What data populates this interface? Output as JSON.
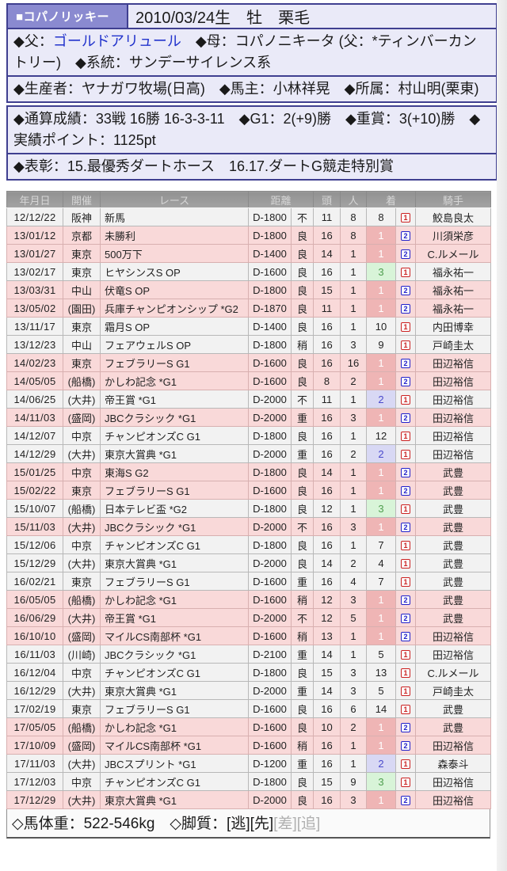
{
  "page": {
    "title_bar": {
      "name": "■コパノリッキー",
      "birth": "2010/03/24生　牡　栗毛"
    },
    "pedigree": {
      "sire_label": "◆父：",
      "sire": "ゴールドアリュール",
      "rest": "　◆母：コパノニキータ (父：*ティンバーカントリー)　◆系統：サンデーサイレンス系"
    },
    "breeder_line": "◆生産者：ヤナガワ牧場(日高)　◆馬主：小林祥晃　◆所属：村山明(栗東)",
    "record_line": "◆通算成績：33戦 16勝 16-3-3-11　◆G1：2(+9)勝　◆重賞：3(+10)勝　◆実績ポイント：1125pt",
    "award_line": "◆表彰：15.最優秀ダートホース　16.17.ダートG競走特別賞"
  },
  "table": {
    "headers": [
      "年月日",
      "開催",
      "レース",
      "距離",
      "頭",
      "人",
      "着",
      "騎手"
    ],
    "legend": {
      "style_icon_red": "boxed-digit-1-red (running style 逃)",
      "style_icon_blue": "boxed-digit-2-blue (running style 先)"
    },
    "rows": [
      {
        "date": "12/12/22",
        "ny": true,
        "venue": "阪神",
        "race": "新馬",
        "dist": "D-1800",
        "cond": "不",
        "heads": "11",
        "pop": "8",
        "fin": "8",
        "fin_type": "other",
        "style": "1",
        "style_color": "red",
        "jockey": "鮫島良太"
      },
      {
        "date": "13/01/12",
        "ny": true,
        "venue": "京都",
        "race": "未勝利",
        "dist": "D-1800",
        "cond": "良",
        "heads": "16",
        "pop": "8",
        "fin": "1",
        "fin_type": "win",
        "style": "2",
        "style_color": "blue",
        "jockey": "川須栄彦"
      },
      {
        "date": "13/01/27",
        "ny": false,
        "venue": "東京",
        "race": "500万下",
        "dist": "D-1400",
        "cond": "良",
        "heads": "14",
        "pop": "1",
        "fin": "1",
        "fin_type": "win",
        "style": "2",
        "style_color": "blue",
        "jockey": "C.ルメール"
      },
      {
        "date": "13/02/17",
        "ny": false,
        "venue": "東京",
        "race": "ヒヤシンスS OP",
        "dist": "D-1600",
        "cond": "良",
        "heads": "16",
        "pop": "1",
        "fin": "3",
        "fin_type": "third",
        "style": "1",
        "style_color": "red",
        "jockey": "福永祐一"
      },
      {
        "date": "13/03/31",
        "ny": false,
        "venue": "中山",
        "race": "伏竜S OP",
        "dist": "D-1800",
        "cond": "良",
        "heads": "15",
        "pop": "1",
        "fin": "1",
        "fin_type": "win",
        "style": "2",
        "style_color": "blue",
        "jockey": "福永祐一"
      },
      {
        "date": "13/05/02",
        "ny": false,
        "venue": "(園田)",
        "race": "兵庫チャンピオンシップ *G2",
        "dist": "D-1870",
        "cond": "良",
        "heads": "11",
        "pop": "1",
        "fin": "1",
        "fin_type": "win",
        "style": "2",
        "style_color": "blue",
        "jockey": "福永祐一"
      },
      {
        "date": "13/11/17",
        "ny": false,
        "venue": "東京",
        "race": "霜月S OP",
        "dist": "D-1400",
        "cond": "良",
        "heads": "16",
        "pop": "1",
        "fin": "10",
        "fin_type": "other",
        "style": "1",
        "style_color": "red",
        "jockey": "内田博幸"
      },
      {
        "date": "13/12/23",
        "ny": false,
        "venue": "中山",
        "race": "フェアウェルS OP",
        "dist": "D-1800",
        "cond": "稍",
        "heads": "16",
        "pop": "3",
        "fin": "9",
        "fin_type": "other",
        "style": "1",
        "style_color": "red",
        "jockey": "戸崎圭太"
      },
      {
        "date": "14/02/23",
        "ny": true,
        "venue": "東京",
        "race": "フェブラリーS G1",
        "dist": "D-1600",
        "cond": "良",
        "heads": "16",
        "pop": "16",
        "fin": "1",
        "fin_type": "win",
        "style": "2",
        "style_color": "blue",
        "jockey": "田辺裕信"
      },
      {
        "date": "14/05/05",
        "ny": false,
        "venue": "(船橋)",
        "race": "かしわ記念 *G1",
        "dist": "D-1600",
        "cond": "良",
        "heads": "8",
        "pop": "2",
        "fin": "1",
        "fin_type": "win",
        "style": "2",
        "style_color": "blue",
        "jockey": "田辺裕信"
      },
      {
        "date": "14/06/25",
        "ny": false,
        "venue": "(大井)",
        "race": "帝王賞 *G1",
        "dist": "D-2000",
        "cond": "不",
        "heads": "11",
        "pop": "1",
        "fin": "2",
        "fin_type": "second",
        "style": "1",
        "style_color": "red",
        "jockey": "田辺裕信"
      },
      {
        "date": "14/11/03",
        "ny": false,
        "venue": "(盛岡)",
        "race": "JBCクラシック *G1",
        "dist": "D-2000",
        "cond": "重",
        "heads": "16",
        "pop": "3",
        "fin": "1",
        "fin_type": "win",
        "style": "2",
        "style_color": "blue",
        "jockey": "田辺裕信"
      },
      {
        "date": "14/12/07",
        "ny": false,
        "venue": "中京",
        "race": "チャンピオンズC G1",
        "dist": "D-1800",
        "cond": "良",
        "heads": "16",
        "pop": "1",
        "fin": "12",
        "fin_type": "other",
        "style": "1",
        "style_color": "red",
        "jockey": "田辺裕信"
      },
      {
        "date": "14/12/29",
        "ny": false,
        "venue": "(大井)",
        "race": "東京大賞典 *G1",
        "dist": "D-2000",
        "cond": "重",
        "heads": "16",
        "pop": "2",
        "fin": "2",
        "fin_type": "second",
        "style": "1",
        "style_color": "red",
        "jockey": "田辺裕信"
      },
      {
        "date": "15/01/25",
        "ny": true,
        "venue": "中京",
        "race": "東海S G2",
        "dist": "D-1800",
        "cond": "良",
        "heads": "14",
        "pop": "1",
        "fin": "1",
        "fin_type": "win",
        "style": "2",
        "style_color": "blue",
        "jockey": "武豊"
      },
      {
        "date": "15/02/22",
        "ny": false,
        "venue": "東京",
        "race": "フェブラリーS G1",
        "dist": "D-1600",
        "cond": "良",
        "heads": "16",
        "pop": "1",
        "fin": "1",
        "fin_type": "win",
        "style": "2",
        "style_color": "blue",
        "jockey": "武豊"
      },
      {
        "date": "15/10/07",
        "ny": false,
        "venue": "(船橋)",
        "race": "日本テレビ盃 *G2",
        "dist": "D-1800",
        "cond": "良",
        "heads": "12",
        "pop": "1",
        "fin": "3",
        "fin_type": "third",
        "style": "1",
        "style_color": "red",
        "jockey": "武豊"
      },
      {
        "date": "15/11/03",
        "ny": false,
        "venue": "(大井)",
        "race": "JBCクラシック *G1",
        "dist": "D-2000",
        "cond": "不",
        "heads": "16",
        "pop": "3",
        "fin": "1",
        "fin_type": "win",
        "style": "2",
        "style_color": "blue",
        "jockey": "武豊"
      },
      {
        "date": "15/12/06",
        "ny": false,
        "venue": "中京",
        "race": "チャンピオンズC G1",
        "dist": "D-1800",
        "cond": "良",
        "heads": "16",
        "pop": "1",
        "fin": "7",
        "fin_type": "other",
        "style": "1",
        "style_color": "red",
        "jockey": "武豊"
      },
      {
        "date": "15/12/29",
        "ny": false,
        "venue": "(大井)",
        "race": "東京大賞典 *G1",
        "dist": "D-2000",
        "cond": "良",
        "heads": "14",
        "pop": "2",
        "fin": "4",
        "fin_type": "other",
        "style": "1",
        "style_color": "red",
        "jockey": "武豊"
      },
      {
        "date": "16/02/21",
        "ny": true,
        "venue": "東京",
        "race": "フェブラリーS G1",
        "dist": "D-1600",
        "cond": "重",
        "heads": "16",
        "pop": "4",
        "fin": "7",
        "fin_type": "other",
        "style": "1",
        "style_color": "red",
        "jockey": "武豊"
      },
      {
        "date": "16/05/05",
        "ny": false,
        "venue": "(船橋)",
        "race": "かしわ記念 *G1",
        "dist": "D-1600",
        "cond": "稍",
        "heads": "12",
        "pop": "3",
        "fin": "1",
        "fin_type": "win",
        "style": "2",
        "style_color": "blue",
        "jockey": "武豊"
      },
      {
        "date": "16/06/29",
        "ny": false,
        "venue": "(大井)",
        "race": "帝王賞 *G1",
        "dist": "D-2000",
        "cond": "不",
        "heads": "12",
        "pop": "5",
        "fin": "1",
        "fin_type": "win",
        "style": "2",
        "style_color": "blue",
        "jockey": "武豊"
      },
      {
        "date": "16/10/10",
        "ny": false,
        "venue": "(盛岡)",
        "race": "マイルCS南部杯 *G1",
        "dist": "D-1600",
        "cond": "稍",
        "heads": "13",
        "pop": "1",
        "fin": "1",
        "fin_type": "win",
        "style": "2",
        "style_color": "blue",
        "jockey": "田辺裕信"
      },
      {
        "date": "16/11/03",
        "ny": false,
        "venue": "(川崎)",
        "race": "JBCクラシック *G1",
        "dist": "D-2100",
        "cond": "重",
        "heads": "14",
        "pop": "1",
        "fin": "5",
        "fin_type": "other",
        "style": "1",
        "style_color": "red",
        "jockey": "田辺裕信"
      },
      {
        "date": "16/12/04",
        "ny": false,
        "venue": "中京",
        "race": "チャンピオンズC G1",
        "dist": "D-1800",
        "cond": "良",
        "heads": "15",
        "pop": "3",
        "fin": "13",
        "fin_type": "other",
        "style": "1",
        "style_color": "red",
        "jockey": "C.ルメール"
      },
      {
        "date": "16/12/29",
        "ny": false,
        "venue": "(大井)",
        "race": "東京大賞典 *G1",
        "dist": "D-2000",
        "cond": "重",
        "heads": "14",
        "pop": "3",
        "fin": "5",
        "fin_type": "other",
        "style": "1",
        "style_color": "red",
        "jockey": "戸崎圭太"
      },
      {
        "date": "17/02/19",
        "ny": true,
        "venue": "東京",
        "race": "フェブラリーS G1",
        "dist": "D-1600",
        "cond": "良",
        "heads": "16",
        "pop": "6",
        "fin": "14",
        "fin_type": "other",
        "style": "1",
        "style_color": "red",
        "jockey": "武豊"
      },
      {
        "date": "17/05/05",
        "ny": false,
        "venue": "(船橋)",
        "race": "かしわ記念 *G1",
        "dist": "D-1600",
        "cond": "良",
        "heads": "10",
        "pop": "2",
        "fin": "1",
        "fin_type": "win",
        "style": "2",
        "style_color": "blue",
        "jockey": "武豊"
      },
      {
        "date": "17/10/09",
        "ny": false,
        "venue": "(盛岡)",
        "race": "マイルCS南部杯 *G1",
        "dist": "D-1600",
        "cond": "稍",
        "heads": "16",
        "pop": "1",
        "fin": "1",
        "fin_type": "win",
        "style": "2",
        "style_color": "blue",
        "jockey": "田辺裕信"
      },
      {
        "date": "17/11/03",
        "ny": false,
        "venue": "(大井)",
        "race": "JBCスプリント *G1",
        "dist": "D-1200",
        "cond": "重",
        "heads": "16",
        "pop": "1",
        "fin": "2",
        "fin_type": "second",
        "style": "1",
        "style_color": "red",
        "jockey": "森泰斗"
      },
      {
        "date": "17/12/03",
        "ny": false,
        "venue": "中京",
        "race": "チャンピオンズC G1",
        "dist": "D-1800",
        "cond": "良",
        "heads": "15",
        "pop": "9",
        "fin": "3",
        "fin_type": "third",
        "style": "1",
        "style_color": "red",
        "jockey": "田辺裕信"
      },
      {
        "date": "17/12/29",
        "ny": false,
        "venue": "(大井)",
        "race": "東京大賞典 *G1",
        "dist": "D-2000",
        "cond": "良",
        "heads": "16",
        "pop": "3",
        "fin": "1",
        "fin_type": "win",
        "style": "2",
        "style_color": "blue",
        "jockey": "田辺裕信"
      }
    ]
  },
  "footer": {
    "weight": "◇馬体重：522-546kg",
    "legs_label": "　◇脚質：",
    "legs": [
      {
        "label": "[逃]",
        "active": true
      },
      {
        "label": "[先]",
        "active": true
      },
      {
        "label": "[差]",
        "active": false
      },
      {
        "label": "[追]",
        "active": false
      }
    ]
  },
  "colors": {
    "box_border_navy": "#3f3f90",
    "box_bg_lavender": "#eaeaf8",
    "name_bg_purple": "#8a8ad0",
    "link_blue": "#2233cc",
    "header_gray": "#9a9a9a",
    "row_win_pink": "#f9d9d9",
    "row_std_gray": "#f2f2f2",
    "fin_win_bg": "#efb5b5",
    "fin_second_bg": "#d8d8f4",
    "fin_third_bg": "#d8f4d8",
    "style_icon_red": "#cc2222",
    "style_icon_blue": "#2222cc"
  }
}
